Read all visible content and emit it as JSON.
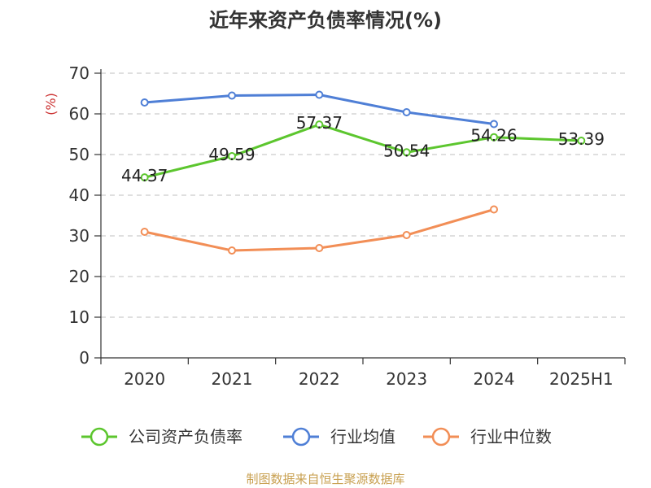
{
  "chart_data": {
    "type": "line",
    "title": "近年来资产负债率情况(%)",
    "ylabel": "(%)",
    "ylim": [
      0,
      70
    ],
    "yticks": [
      0,
      10,
      20,
      30,
      40,
      50,
      60,
      70
    ],
    "categories": [
      "2020",
      "2021",
      "2022",
      "2023",
      "2024",
      "2025H1"
    ],
    "grid": true,
    "legend_position": "bottom",
    "series": [
      {
        "name": "公司资产负债率",
        "color": "#5cc62e",
        "values": [
          44.37,
          49.59,
          57.37,
          50.54,
          54.26,
          53.39
        ],
        "labels": [
          "44.37",
          "49.59",
          "57.37",
          "50.54",
          "54.26",
          "53.39"
        ]
      },
      {
        "name": "行业均值",
        "color": "#4f7fd6",
        "values": [
          62.8,
          64.5,
          64.7,
          60.4,
          57.5,
          null
        ]
      },
      {
        "name": "行业中位数",
        "color": "#f28e56",
        "values": [
          31.0,
          26.4,
          27.0,
          30.2,
          36.5,
          null
        ]
      }
    ]
  },
  "source_text": "制图数据来自恒生聚源数据库",
  "colors": {
    "source": "#c8a050",
    "ylabel": "#cc3333",
    "axis": "#333333",
    "grid": "#cccccc"
  }
}
